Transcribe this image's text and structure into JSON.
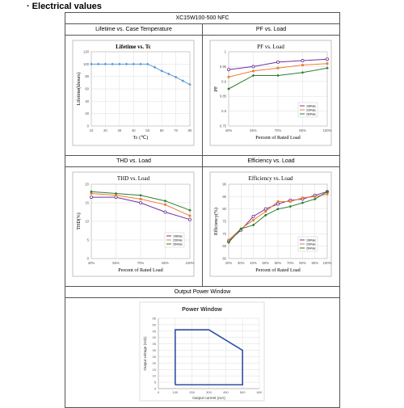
{
  "section": {
    "bullet": "·",
    "title": "Electrical values"
  },
  "model": "XC15W100-500 NFC",
  "panels": {
    "lifetime": {
      "header": "Lifetime vs. Case Temperature"
    },
    "pf": {
      "header": "PF vs. Load"
    },
    "thd": {
      "header": "THD vs. Load"
    },
    "eff": {
      "header": "Efficiency vs. Load"
    },
    "window": {
      "header": "Output Power Window"
    }
  },
  "colors": {
    "blue": "#5b9bd5",
    "purple": "#7030a0",
    "orange": "#ed7d31",
    "green": "#2e7d32",
    "teal": "#41a0c8",
    "window_line": "#2f4f9f"
  },
  "chart_data": [
    {
      "id": "lifetime",
      "type": "line",
      "title": "Lifetime vs. Tc",
      "xlabel": "Tc (℃)",
      "ylabel": "Lifetime(khours)",
      "xlim": [
        10,
        80
      ],
      "ylim": [
        0,
        120
      ],
      "xticks": [
        10,
        20,
        30,
        40,
        50,
        60,
        70,
        80
      ],
      "yticks": [
        0,
        20,
        40,
        60,
        80,
        100,
        120
      ],
      "grid": true,
      "series": [
        {
          "x": [
            10,
            15,
            20,
            25,
            30,
            35,
            40,
            45,
            50,
            55,
            60,
            65,
            70,
            75,
            80
          ],
          "values": [
            100,
            100,
            100,
            100,
            100,
            100,
            100,
            100,
            100,
            95,
            89,
            84,
            79,
            73,
            67
          ]
        }
      ]
    },
    {
      "id": "pf",
      "type": "line",
      "title": "PF vs. Load",
      "xlabel": "Percent of Rated Load",
      "ylabel": "PF",
      "categories": [
        "40%",
        "55%",
        "70%",
        "85%",
        "100%"
      ],
      "ylim": [
        0.75,
        1
      ],
      "yticks": [
        0.75,
        0.8,
        0.85,
        0.9,
        0.95,
        1
      ],
      "grid": true,
      "legend": "bottom-right",
      "series": [
        {
          "name": "198Vac",
          "values": [
            0.94,
            0.95,
            0.965,
            0.97,
            0.975
          ]
        },
        {
          "name": "230Vac",
          "values": [
            0.915,
            0.935,
            0.945,
            0.955,
            0.96
          ]
        },
        {
          "name": "264Vac",
          "values": [
            0.875,
            0.92,
            0.92,
            0.93,
            0.945
          ]
        }
      ]
    },
    {
      "id": "thd",
      "type": "line",
      "title": "THD vs. Load",
      "xlabel": "Percent of Rated Load",
      "ylabel": "THD(%)",
      "categories": [
        "40%",
        "55%",
        "70%",
        "85%",
        "100%"
      ],
      "ylim": [
        0,
        20
      ],
      "yticks": [
        0,
        5,
        10,
        15,
        20
      ],
      "grid": true,
      "legend": "bottom-right",
      "series": [
        {
          "name": "198Vac",
          "values": [
            16.5,
            16.5,
            15,
            12.5,
            10.5
          ]
        },
        {
          "name": "230Vac",
          "values": [
            17.5,
            17,
            16,
            14.5,
            11.5
          ]
        },
        {
          "name": "264Vac",
          "values": [
            18,
            17.5,
            17,
            15.5,
            13
          ]
        }
      ]
    },
    {
      "id": "eff",
      "type": "line",
      "title": "Efficiency vs. Load",
      "xlabel": "Percent of Rated Load",
      "ylabel": "Efficiency(%)",
      "categories": [
        "20%",
        "30%",
        "40%",
        "50%",
        "60%",
        "70%",
        "80%",
        "90%",
        "100%"
      ],
      "ylim": [
        60,
        90
      ],
      "yticks": [
        60,
        65,
        70,
        75,
        80,
        85,
        90
      ],
      "grid": true,
      "legend": "bottom-right",
      "series": [
        {
          "name": "198Vac",
          "values": [
            67,
            71.5,
            77,
            80,
            82,
            83.5,
            84,
            85.5,
            87
          ]
        },
        {
          "name": "230Vac",
          "values": [
            67.5,
            72,
            75.5,
            79,
            83,
            83,
            84.5,
            85,
            86
          ]
        },
        {
          "name": "264Vac",
          "values": [
            66.5,
            72,
            73.5,
            77.5,
            80,
            81,
            82.5,
            84,
            87
          ]
        }
      ]
    },
    {
      "id": "window",
      "type": "area",
      "title": "Power Window",
      "xlabel": "Output current (mA)",
      "ylabel": "Output voltage (Vdc)",
      "xlim": [
        0,
        600
      ],
      "ylim": [
        0,
        55
      ],
      "xticks": [
        0,
        100,
        200,
        300,
        400,
        500,
        600
      ],
      "yticks": [
        0,
        5,
        10,
        15,
        20,
        25,
        30,
        35,
        40,
        45,
        50,
        55
      ],
      "grid": true,
      "series": [
        {
          "x": [
            100,
            100,
            300,
            500,
            500,
            100
          ],
          "values": [
            3,
            46,
            46,
            30,
            3,
            3
          ]
        }
      ]
    }
  ]
}
